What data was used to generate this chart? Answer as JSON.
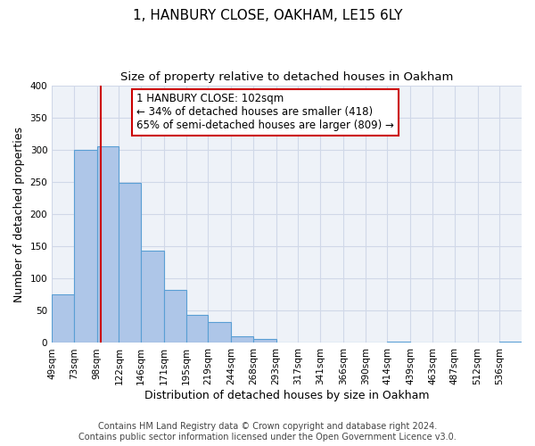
{
  "title": "1, HANBURY CLOSE, OAKHAM, LE15 6LY",
  "subtitle": "Size of property relative to detached houses in Oakham",
  "xlabel": "Distribution of detached houses by size in Oakham",
  "ylabel": "Number of detached properties",
  "bin_labels": [
    "49sqm",
    "73sqm",
    "98sqm",
    "122sqm",
    "146sqm",
    "171sqm",
    "195sqm",
    "219sqm",
    "244sqm",
    "268sqm",
    "293sqm",
    "317sqm",
    "341sqm",
    "366sqm",
    "390sqm",
    "414sqm",
    "439sqm",
    "463sqm",
    "487sqm",
    "512sqm",
    "536sqm"
  ],
  "bin_edges": [
    49,
    73,
    98,
    122,
    146,
    171,
    195,
    219,
    244,
    268,
    293,
    317,
    341,
    366,
    390,
    414,
    439,
    463,
    487,
    512,
    536,
    560
  ],
  "bar_heights": [
    75,
    300,
    305,
    248,
    143,
    83,
    44,
    32,
    10,
    6,
    0,
    0,
    0,
    0,
    0,
    2,
    0,
    0,
    0,
    0,
    2
  ],
  "bar_color": "#aec6e8",
  "bar_edge_color": "#5a9fd4",
  "vline_x": 102,
  "vline_color": "#cc0000",
  "ylim": [
    0,
    400
  ],
  "yticks": [
    0,
    50,
    100,
    150,
    200,
    250,
    300,
    350,
    400
  ],
  "annotation_title": "1 HANBURY CLOSE: 102sqm",
  "annotation_line1": "← 34% of detached houses are smaller (418)",
  "annotation_line2": "65% of semi-detached houses are larger (809) →",
  "footer_line1": "Contains HM Land Registry data © Crown copyright and database right 2024.",
  "footer_line2": "Contains public sector information licensed under the Open Government Licence v3.0.",
  "background_color": "#ffffff",
  "grid_color": "#d0d8e8",
  "title_fontsize": 11,
  "subtitle_fontsize": 9.5,
  "axis_label_fontsize": 9,
  "tick_fontsize": 7.5,
  "annotation_fontsize": 8.5,
  "footer_fontsize": 7
}
